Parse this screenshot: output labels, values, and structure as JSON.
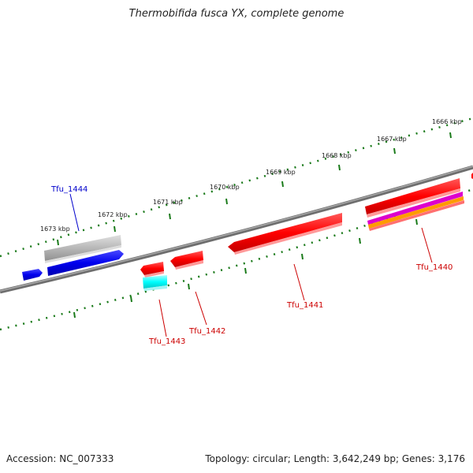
{
  "title": "Thermobifida fusca YX, complete genome",
  "footer": {
    "accession": "Accession: NC_007333",
    "stats": "Topology: circular; Length: 3,642,249 bp; Genes: 3,176"
  },
  "colors": {
    "backbone": "#808080",
    "tick": "#1a7a1a",
    "forward_gene": "#ff0000",
    "reverse_gene": "#0000ee",
    "gene_label_red": "#cc0000",
    "gene_label_blue": "#0000cc",
    "cyan_feature": "#00ffff",
    "gray_feature": "#b0b0b0"
  },
  "kbp_labels": [
    "1666 kbp",
    "1667 kbp",
    "1668 kbp",
    "1669 kbp",
    "1670 kbp",
    "1671 kbp",
    "1672 kbp",
    "1673 kbp"
  ],
  "genes": [
    {
      "name": "Tfu_1440",
      "strand": "forward"
    },
    {
      "name": "Tfu_1441",
      "strand": "forward"
    },
    {
      "name": "Tfu_1442",
      "strand": "forward"
    },
    {
      "name": "Tfu_1443",
      "strand": "forward"
    },
    {
      "name": "Tfu_1444",
      "strand": "reverse"
    }
  ]
}
